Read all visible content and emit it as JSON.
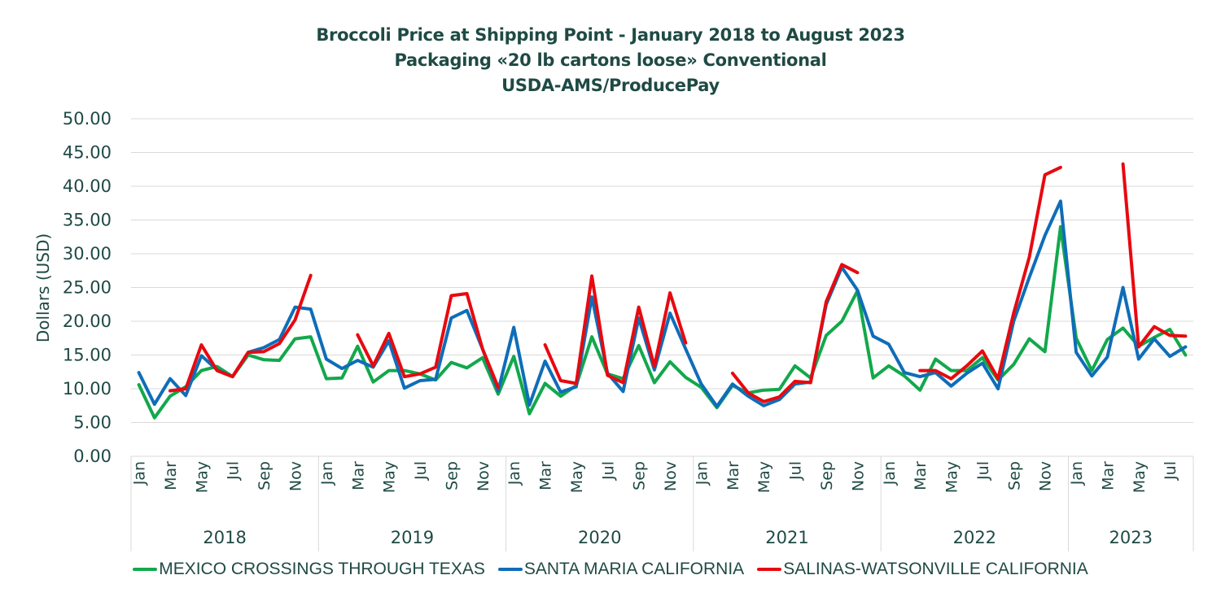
{
  "chart_data": {
    "type": "line",
    "title": [
      "Broccoli Price at Shipping Point - January 2018 to August 2023",
      "Packaging «20 lb cartons loose» Conventional",
      "USDA-AMS/ProducePay"
    ],
    "xlabel": "",
    "ylabel": "Dollars (USD)",
    "ylim": [
      0,
      50
    ],
    "yticks": [
      "0.00",
      "5.00",
      "10.00",
      "15.00",
      "20.00",
      "25.00",
      "30.00",
      "35.00",
      "40.00",
      "45.00",
      "50.00"
    ],
    "grid": true,
    "legend_position": "bottom",
    "years": [
      {
        "label": "2018",
        "months": 12
      },
      {
        "label": "2019",
        "months": 12
      },
      {
        "label": "2020",
        "months": 12
      },
      {
        "label": "2021",
        "months": 12
      },
      {
        "label": "2022",
        "months": 12
      },
      {
        "label": "2023",
        "months": 8
      }
    ],
    "month_labels": [
      "Jan",
      "",
      "Mar",
      "",
      "May",
      "",
      "Jul",
      "",
      "Sep",
      "",
      "Nov",
      ""
    ],
    "series": [
      {
        "name": "MEXICO CROSSINGS THROUGH TEXAS",
        "color": "#12a84b",
        "values": [
          10.6,
          5.7,
          8.9,
          10.3,
          12.7,
          13.3,
          11.8,
          15.0,
          14.3,
          14.2,
          17.4,
          17.7,
          11.5,
          11.6,
          16.3,
          11.0,
          12.7,
          12.7,
          12.2,
          11.3,
          13.9,
          13.1,
          14.6,
          9.2,
          14.8,
          6.3,
          10.8,
          8.9,
          10.5,
          17.7,
          12.2,
          11.5,
          16.4,
          10.9,
          14.0,
          11.7,
          10.2,
          7.2,
          10.5,
          9.4,
          9.8,
          9.9,
          13.4,
          11.6,
          17.9,
          20.0,
          24.5,
          11.6,
          13.4,
          11.9,
          9.8,
          14.4,
          12.7,
          12.7,
          14.6,
          11.3,
          13.6,
          17.4,
          15.5,
          34.0,
          17.5,
          12.7,
          17.3,
          19.0,
          16.3,
          17.6,
          18.8,
          15.0
        ]
      },
      {
        "name": "SANTA MARIA CALIFORNIA",
        "color": "#0f6db8",
        "values": [
          12.4,
          7.7,
          11.5,
          9.0,
          14.9,
          12.8,
          11.8,
          15.4,
          16.1,
          17.3,
          22.1,
          21.8,
          14.4,
          13.0,
          14.2,
          13.2,
          17.1,
          10.1,
          11.2,
          11.4,
          20.5,
          21.6,
          15.9,
          9.7,
          19.1,
          7.6,
          14.1,
          9.5,
          10.3,
          23.6,
          12.3,
          9.6,
          20.5,
          12.8,
          21.2,
          15.9,
          10.7,
          7.4,
          10.7,
          8.9,
          7.5,
          8.4,
          10.7,
          11.0,
          22.5,
          28.0,
          24.6,
          17.8,
          16.6,
          12.4,
          11.8,
          12.4,
          10.4,
          12.3,
          13.8,
          10.0,
          20.0,
          26.5,
          32.7,
          37.8,
          15.4,
          11.9,
          14.7,
          25.0,
          14.4,
          17.4,
          14.8,
          16.2
        ]
      },
      {
        "name": "SALINAS-WATSONVILLE CALIFORNIA",
        "color": "#e8090f",
        "values": [
          null,
          null,
          9.7,
          10.0,
          16.5,
          12.7,
          11.8,
          15.4,
          15.5,
          16.7,
          20.2,
          26.8,
          null,
          null,
          18.0,
          13.4,
          18.2,
          11.8,
          12.2,
          13.2,
          23.8,
          24.1,
          15.9,
          10.2,
          null,
          null,
          16.5,
          11.2,
          10.8,
          26.7,
          12.0,
          10.9,
          22.1,
          13.3,
          24.2,
          16.8,
          null,
          null,
          12.3,
          9.4,
          8.1,
          8.8,
          11.1,
          10.9,
          22.9,
          28.4,
          27.2,
          null,
          null,
          null,
          12.7,
          12.7,
          11.5,
          13.4,
          15.6,
          11.5,
          21.2,
          29.5,
          41.7,
          42.8,
          null,
          null,
          null,
          43.3,
          16.2,
          19.2,
          17.9,
          17.8
        ]
      }
    ]
  },
  "colors": {
    "text": "#1f4a44",
    "grid": "#d9d9d9"
  }
}
